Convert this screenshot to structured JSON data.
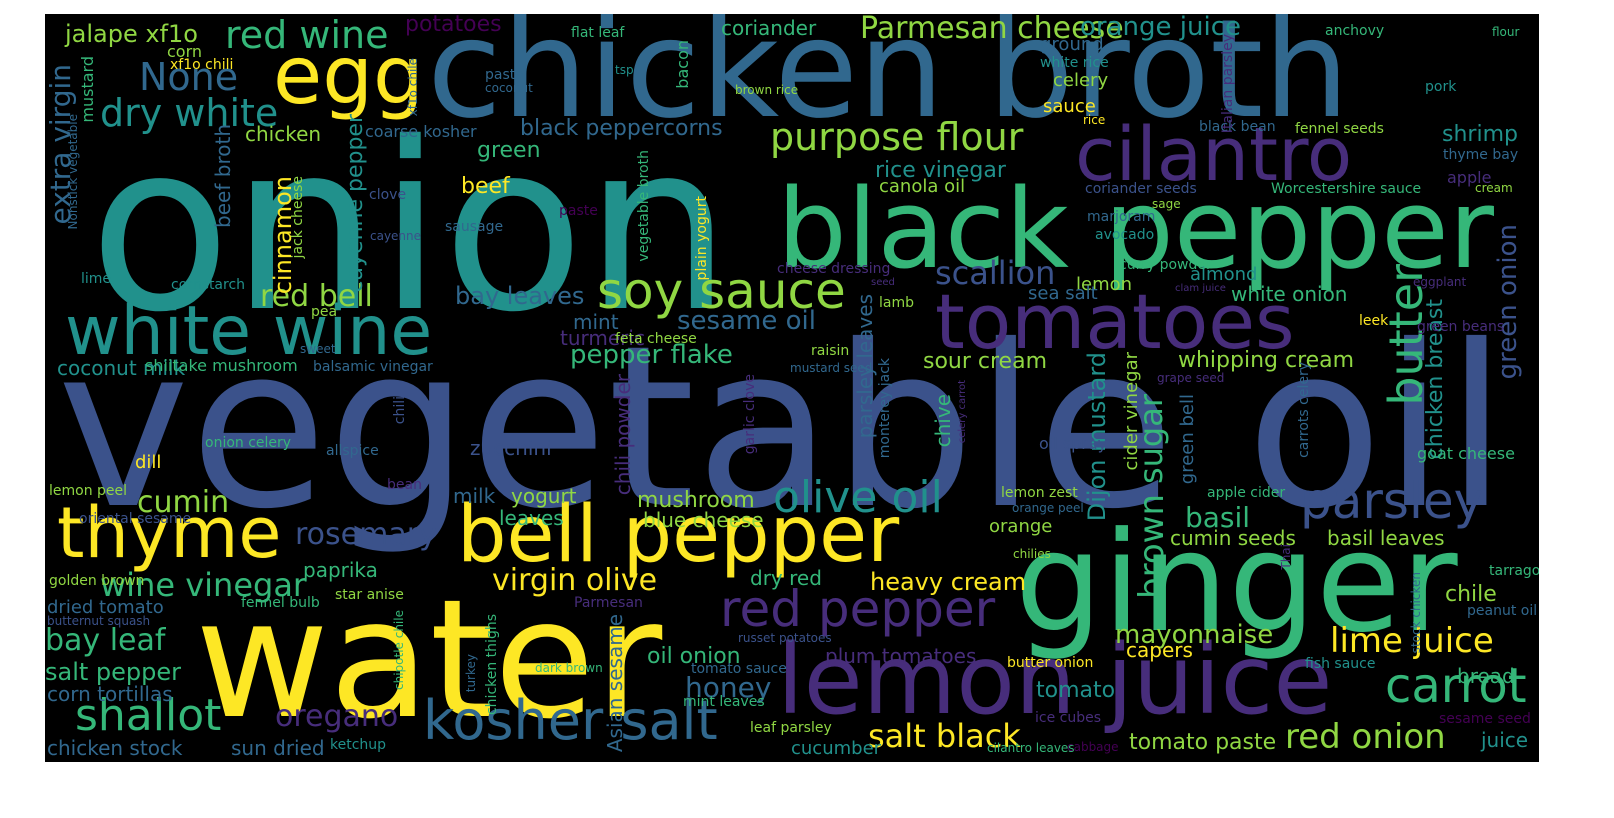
{
  "palette": {
    "purple": "#472d7b",
    "blue": "#3b528b",
    "steel": "#31688e",
    "teal": "#21918c",
    "green": "#35b779",
    "lime": "#90d743",
    "yellow": "#fde725",
    "dark": "#440154"
  },
  "words": [
    {
      "text": "onion",
      "c": "teal"
    },
    {
      "text": "vegetable oil",
      "c": "blue"
    },
    {
      "text": "chicken broth",
      "c": "steel"
    },
    {
      "text": "water",
      "c": "yellow"
    },
    {
      "text": "ginger",
      "c": "green"
    },
    {
      "text": "black pepper",
      "c": "green"
    },
    {
      "text": "lemon juice",
      "c": "purple"
    },
    {
      "text": "bell pepper",
      "c": "yellow"
    },
    {
      "text": "tomatoes",
      "c": "purple"
    },
    {
      "text": "cilantro",
      "c": "purple"
    },
    {
      "text": "egg",
      "c": "yellow"
    },
    {
      "text": "white wine",
      "c": "teal"
    },
    {
      "text": "thyme",
      "c": "yellow"
    },
    {
      "text": "kosher salt",
      "c": "steel"
    },
    {
      "text": "soy sauce",
      "c": "lime"
    },
    {
      "text": "carrot",
      "c": "green"
    },
    {
      "text": "red pepper",
      "c": "purple"
    },
    {
      "text": "parsley",
      "c": "blue"
    },
    {
      "text": "shallot",
      "c": "green"
    },
    {
      "text": "olive oil",
      "c": "teal"
    },
    {
      "text": "purpose flour",
      "c": "lime"
    },
    {
      "text": "butter",
      "c": "green"
    },
    {
      "text": "red wine",
      "c": "green"
    },
    {
      "text": "None",
      "c": "steel"
    },
    {
      "text": "dry white",
      "c": "teal"
    },
    {
      "text": "Parmesan cheese",
      "c": "lime"
    },
    {
      "text": "lime juice",
      "c": "yellow"
    },
    {
      "text": "red onion",
      "c": "lime"
    },
    {
      "text": "salt black",
      "c": "yellow"
    },
    {
      "text": "virgin olive",
      "c": "yellow"
    },
    {
      "text": "wine vinegar",
      "c": "green"
    },
    {
      "text": "oregano",
      "c": "purple"
    },
    {
      "text": "rosemary",
      "c": "blue"
    },
    {
      "text": "scallion",
      "c": "blue"
    },
    {
      "text": "cumin",
      "c": "lime"
    },
    {
      "text": "sugar",
      "c": "green"
    },
    {
      "text": "brown",
      "c": "green"
    },
    {
      "text": "red bell",
      "c": "lime"
    },
    {
      "text": "honey",
      "c": "steel"
    },
    {
      "text": "bay leaf",
      "c": "green"
    },
    {
      "text": "green onion",
      "c": "blue"
    },
    {
      "text": "orange juice",
      "c": "teal"
    },
    {
      "text": "jalape xf1o",
      "c": "lime"
    },
    {
      "text": "potatoes",
      "c": "dark"
    },
    {
      "text": "extra virgin",
      "c": "steel"
    },
    {
      "text": "mayonnaise",
      "c": "lime"
    },
    {
      "text": "black peppercorns",
      "c": "steel"
    },
    {
      "text": "sesame oil",
      "c": "steel"
    },
    {
      "text": "bay leaves",
      "c": "steel"
    },
    {
      "text": "pepper flake",
      "c": "green"
    },
    {
      "text": "salt pepper",
      "c": "green"
    },
    {
      "text": "basil",
      "c": "green"
    },
    {
      "text": "heavy cream",
      "c": "yellow"
    },
    {
      "text": "tomato paste",
      "c": "lime"
    },
    {
      "text": "whipping cream",
      "c": "lime"
    },
    {
      "text": "sour cream",
      "c": "lime"
    },
    {
      "text": "mushroom",
      "c": "lime"
    },
    {
      "text": "Dijon mustard",
      "c": "teal"
    },
    {
      "text": "coriander",
      "c": "green"
    },
    {
      "text": "shrimp",
      "c": "teal"
    },
    {
      "text": "tomato",
      "c": "teal"
    },
    {
      "text": "oil onion",
      "c": "green"
    },
    {
      "text": "cayenne pepper",
      "c": "teal"
    },
    {
      "text": "cinnamon",
      "c": "yellow"
    },
    {
      "text": "rice vinegar",
      "c": "teal"
    },
    {
      "text": "chicken breast",
      "c": "teal"
    },
    {
      "text": "chicken",
      "c": "lime"
    },
    {
      "text": "green",
      "c": "green"
    },
    {
      "text": "beef",
      "c": "yellow"
    },
    {
      "text": "beef broth",
      "c": "steel"
    },
    {
      "text": "coconut milk",
      "c": "teal"
    },
    {
      "text": "corn tortillas",
      "c": "steel"
    },
    {
      "text": "chicken stock",
      "c": "steel"
    },
    {
      "text": "sun dried",
      "c": "steel"
    },
    {
      "text": "zucchini",
      "c": "blue"
    },
    {
      "text": "plum tomatoes",
      "c": "purple"
    },
    {
      "text": "chili powder",
      "c": "purple"
    },
    {
      "text": "Asian sesame",
      "c": "steel"
    },
    {
      "text": "parsley leaves",
      "c": "steel"
    },
    {
      "text": "cumin seeds",
      "c": "lime"
    },
    {
      "text": "basil leaves",
      "c": "lime"
    },
    {
      "text": "white onion",
      "c": "green"
    },
    {
      "text": "mint",
      "c": "steel"
    },
    {
      "text": "turmeric",
      "c": "purple"
    },
    {
      "text": "paprika",
      "c": "green"
    },
    {
      "text": "yogurt",
      "c": "lime"
    },
    {
      "text": "milk",
      "c": "steel"
    },
    {
      "text": "leaves",
      "c": "green"
    },
    {
      "text": "blue cheese",
      "c": "lime"
    },
    {
      "text": "dry red",
      "c": "green"
    },
    {
      "text": "chile",
      "c": "lime"
    },
    {
      "text": "bread",
      "c": "green"
    },
    {
      "text": "juice",
      "c": "teal"
    },
    {
      "text": "capers",
      "c": "yellow"
    },
    {
      "text": "canola oil",
      "c": "lime"
    },
    {
      "text": "celery",
      "c": "lime"
    },
    {
      "text": "sauce",
      "c": "yellow"
    },
    {
      "text": "ground",
      "c": "steel"
    },
    {
      "text": "almond",
      "c": "teal"
    },
    {
      "text": "lemon",
      "c": "lime"
    },
    {
      "text": "sea salt",
      "c": "steel"
    },
    {
      "text": "chive",
      "c": "green"
    },
    {
      "text": "green bell",
      "c": "steel"
    },
    {
      "text": "cider vinegar",
      "c": "lime"
    },
    {
      "text": "orange",
      "c": "lime"
    },
    {
      "text": "dried tomato",
      "c": "steel"
    },
    {
      "text": "coarse kosher",
      "c": "steel"
    },
    {
      "text": "mustard",
      "c": "green"
    },
    {
      "text": "corn",
      "c": "lime"
    },
    {
      "text": "xf1o chili",
      "c": "yellow"
    },
    {
      "text": "flat leaf",
      "c": "green"
    },
    {
      "text": "bacon",
      "c": "green"
    },
    {
      "text": "anchovy",
      "c": "green"
    },
    {
      "text": "flour",
      "c": "green"
    },
    {
      "text": "pork",
      "c": "teal"
    },
    {
      "text": "apple",
      "c": "purple"
    },
    {
      "text": "cream",
      "c": "lime"
    },
    {
      "text": "thyme bay",
      "c": "steel"
    },
    {
      "text": "fennel seeds",
      "c": "lime"
    },
    {
      "text": "black bean",
      "c": "steel"
    },
    {
      "text": "Italian parsley",
      "c": "purple"
    },
    {
      "text": "white rice",
      "c": "teal"
    },
    {
      "text": "rice",
      "c": "yellow"
    },
    {
      "text": "brown rice",
      "c": "lime"
    },
    {
      "text": "pasta",
      "c": "steel"
    },
    {
      "text": "coconut",
      "c": "steel"
    },
    {
      "text": "tsp",
      "c": "teal"
    },
    {
      "text": "xf1o chile",
      "c": "steel"
    },
    {
      "text": "Worcestershire sauce",
      "c": "green"
    },
    {
      "text": "coriander seeds",
      "c": "blue"
    },
    {
      "text": "sage",
      "c": "lime"
    },
    {
      "text": "marjoram",
      "c": "steel"
    },
    {
      "text": "avocado",
      "c": "teal"
    },
    {
      "text": "curry powder",
      "c": "green"
    },
    {
      "text": "cheese dressing",
      "c": "purple"
    },
    {
      "text": "seed",
      "c": "purple"
    },
    {
      "text": "clam juice",
      "c": "purple"
    },
    {
      "text": "eggplant",
      "c": "purple"
    },
    {
      "text": "green beans",
      "c": "purple"
    },
    {
      "text": "leek",
      "c": "yellow"
    },
    {
      "text": "lamb",
      "c": "lime"
    },
    {
      "text": "raisin",
      "c": "lime"
    },
    {
      "text": "mustard seed",
      "c": "steel"
    },
    {
      "text": "grape seed",
      "c": "purple"
    },
    {
      "text": "carrots celery",
      "c": "steel"
    },
    {
      "text": "celery carrot",
      "c": "purple"
    },
    {
      "text": "goat cheese",
      "c": "green"
    },
    {
      "text": "oil spray",
      "c": "blue"
    },
    {
      "text": "garlic clove",
      "c": "purple"
    },
    {
      "text": "monterey jack",
      "c": "steel"
    },
    {
      "text": "vegetable broth",
      "c": "green"
    },
    {
      "text": "plain yogurt",
      "c": "yellow"
    },
    {
      "text": "paste",
      "c": "dark"
    },
    {
      "text": "sausage",
      "c": "steel"
    },
    {
      "text": "clove",
      "c": "blue"
    },
    {
      "text": "cayenne",
      "c": "blue"
    },
    {
      "text": "jack cheese",
      "c": "lime"
    },
    {
      "text": "Nonstick vegetable",
      "c": "steel"
    },
    {
      "text": "lime",
      "c": "teal"
    },
    {
      "text": "cornstarch",
      "c": "teal"
    },
    {
      "text": "pea",
      "c": "lime"
    },
    {
      "text": "sweet",
      "c": "steel"
    },
    {
      "text": "shiitake mushroom",
      "c": "green"
    },
    {
      "text": "balsamic vinegar",
      "c": "steel"
    },
    {
      "text": "chili",
      "c": "blue"
    },
    {
      "text": "onion celery",
      "c": "green"
    },
    {
      "text": "allspice",
      "c": "steel"
    },
    {
      "text": "dill",
      "c": "yellow"
    },
    {
      "text": "bean",
      "c": "purple"
    },
    {
      "text": "lemon peel",
      "c": "lime"
    },
    {
      "text": "oriental sesame",
      "c": "blue"
    },
    {
      "text": "golden brown",
      "c": "lime"
    },
    {
      "text": "star anise",
      "c": "lime"
    },
    {
      "text": "fennel bulb",
      "c": "green"
    },
    {
      "text": "butternut squash",
      "c": "blue"
    },
    {
      "text": "Parmesan",
      "c": "purple"
    },
    {
      "text": "chipotle chile",
      "c": "green"
    },
    {
      "text": "chicken thighs",
      "c": "green"
    },
    {
      "text": "turkey",
      "c": "steel"
    },
    {
      "text": "dark brown",
      "c": "green"
    },
    {
      "text": "tomato sauce",
      "c": "steel"
    },
    {
      "text": "russet potatoes",
      "c": "blue"
    },
    {
      "text": "mint leaves",
      "c": "green"
    },
    {
      "text": "leaf parsley",
      "c": "lime"
    },
    {
      "text": "ketchup",
      "c": "teal"
    },
    {
      "text": "cucumber",
      "c": "teal"
    },
    {
      "text": "ice cubes",
      "c": "purple"
    },
    {
      "text": "cilantro leaves",
      "c": "green"
    },
    {
      "text": "cabbage",
      "c": "dark"
    },
    {
      "text": "butter onion",
      "c": "yellow"
    },
    {
      "text": "fish sauce",
      "c": "teal"
    },
    {
      "text": "lemon zest",
      "c": "lime"
    },
    {
      "text": "orange peel",
      "c": "steel"
    },
    {
      "text": "apple cider",
      "c": "green"
    },
    {
      "text": "chilies",
      "c": "lime"
    },
    {
      "text": "feta cheese",
      "c": "lime"
    },
    {
      "text": "Thai",
      "c": "purple"
    },
    {
      "text": "stock chicken",
      "c": "steel"
    },
    {
      "text": "tarragon",
      "c": "green"
    },
    {
      "text": "peanut oil",
      "c": "steel"
    },
    {
      "text": "sesame seed",
      "c": "dark"
    }
  ]
}
